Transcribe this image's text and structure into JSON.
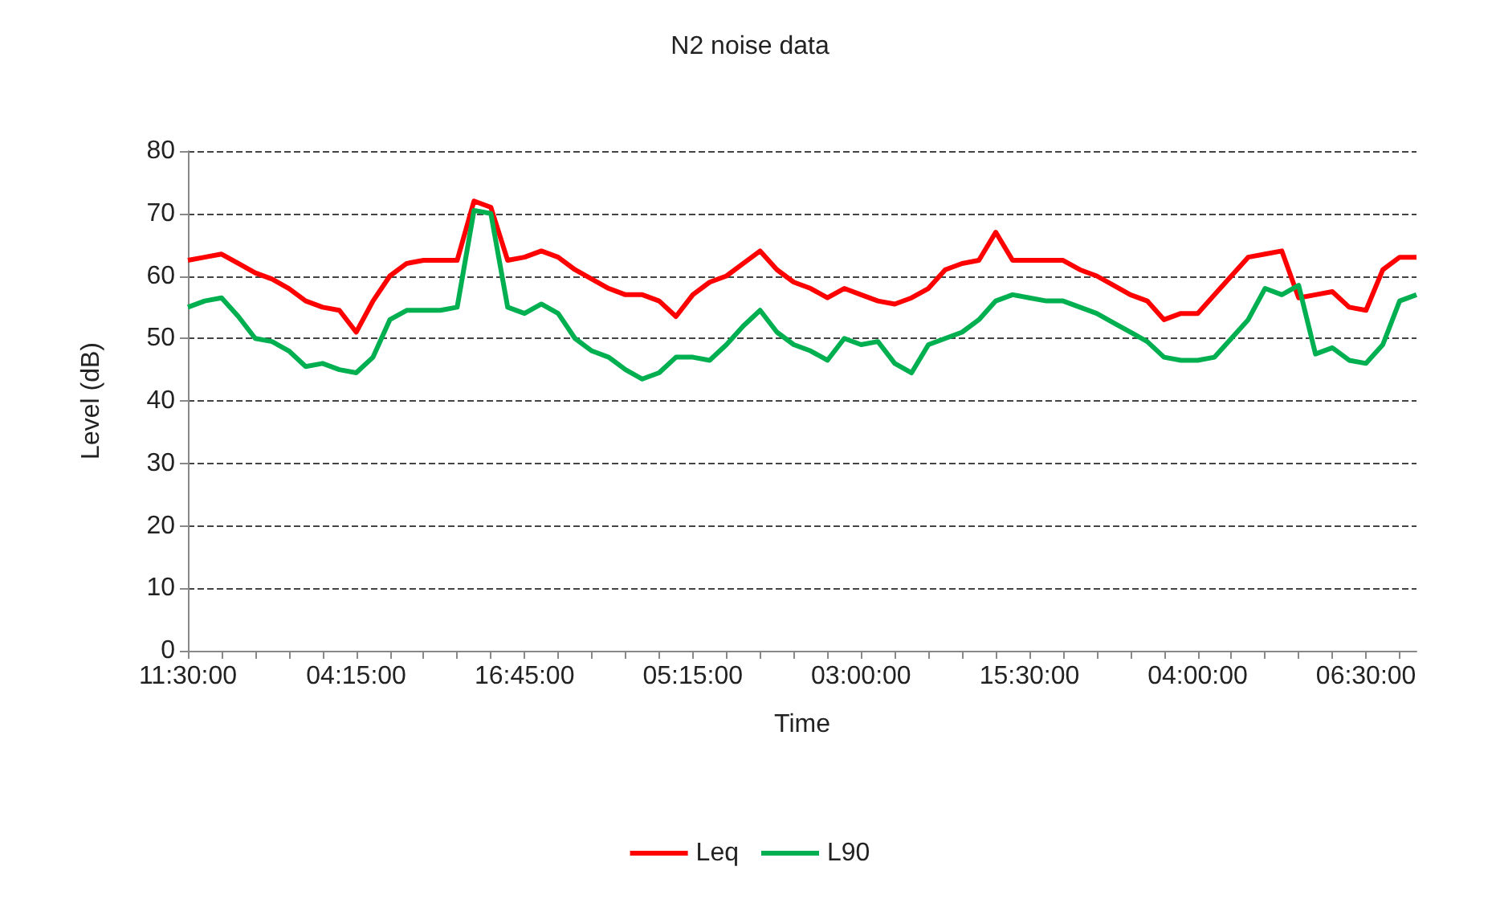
{
  "chart_data": {
    "type": "line",
    "title": "N2 noise data",
    "xlabel": "Time",
    "ylabel": "Level (dB)",
    "categories": [
      "11:30:00",
      null,
      null,
      null,
      null,
      null,
      null,
      null,
      null,
      null,
      "04:15:00",
      null,
      null,
      null,
      null,
      null,
      null,
      null,
      null,
      null,
      "16:45:00",
      null,
      null,
      null,
      null,
      null,
      null,
      null,
      null,
      null,
      "05:15:00",
      null,
      null,
      null,
      null,
      null,
      null,
      null,
      null,
      null,
      "03:00:00",
      null,
      null,
      null,
      null,
      null,
      null,
      null,
      null,
      null,
      "15:30:00",
      null,
      null,
      null,
      null,
      null,
      null,
      null,
      null,
      null,
      "04:00:00",
      null,
      null,
      null,
      null,
      null,
      null,
      null,
      null,
      null,
      "06:30:00",
      null,
      null,
      null
    ],
    "series": [
      {
        "name": "Leq",
        "color": "#ff0000",
        "values": [
          62.5,
          63,
          63.5,
          62,
          60.5,
          59.5,
          58,
          56,
          55,
          54.5,
          51,
          56,
          60,
          62,
          62.5,
          62.5,
          62.5,
          72,
          71,
          62.5,
          63,
          64,
          63,
          61,
          59.5,
          58,
          57,
          57,
          56,
          53.5,
          57,
          59,
          60,
          62,
          64,
          61,
          59,
          58,
          56.5,
          58,
          57,
          56,
          55.5,
          56.5,
          58,
          61,
          62,
          62.5,
          67,
          62.5,
          62.5,
          62.5,
          62.5,
          61,
          60,
          58.5,
          57,
          56,
          53,
          54,
          54,
          57,
          60,
          63,
          63.5,
          64,
          56.5,
          57,
          57.5,
          55,
          54.5,
          61,
          63,
          63
        ]
      },
      {
        "name": "L90",
        "color": "#00b050",
        "values": [
          55,
          56,
          56.5,
          53.5,
          50,
          49.5,
          48,
          45.5,
          46,
          45,
          44.5,
          47,
          53,
          54.5,
          54.5,
          54.5,
          55,
          70.5,
          70,
          55,
          54,
          55.5,
          54,
          50,
          48,
          47,
          45,
          43.5,
          44.5,
          47,
          47,
          46.5,
          49,
          52,
          54.5,
          51,
          49,
          48,
          46.5,
          50,
          49,
          49.5,
          46,
          44.5,
          49,
          50,
          51,
          53,
          56,
          57,
          56.5,
          56,
          56,
          55,
          54,
          52.5,
          51,
          49.5,
          47,
          46.5,
          46.5,
          47,
          50,
          53,
          58,
          57,
          58.5,
          47.5,
          48.5,
          46.5,
          46,
          49,
          56,
          57
        ]
      }
    ],
    "ylim": [
      0,
      80
    ],
    "yticks": [
      0,
      10,
      20,
      30,
      40,
      50,
      60,
      70,
      80
    ],
    "grid": "y",
    "legend": "bottom",
    "marker": "none",
    "line_style": "solid"
  }
}
